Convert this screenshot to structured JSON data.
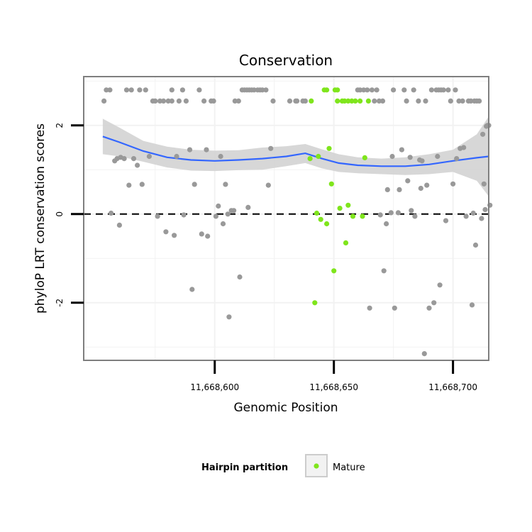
{
  "chart_data": {
    "type": "scatter",
    "title": "Conservation",
    "xlabel": "Genomic Position",
    "ylabel": "phyloP LRT conservation scores",
    "xlim": [
      11668545,
      11668715
    ],
    "ylim": [
      -3.3,
      3.1
    ],
    "x_ticks": [
      11668600,
      11668650,
      11668700
    ],
    "x_tick_labels": [
      "11,668,600",
      "11,668,650",
      "11,668,700"
    ],
    "y_ticks": [
      -2,
      0,
      2
    ],
    "y_tick_labels": [
      "-2",
      "0",
      "2"
    ],
    "reference_line": {
      "y": 0,
      "style": "dashed"
    },
    "grid": true,
    "legend": {
      "title": "Hairpin partition",
      "entries": [
        "Mature"
      ],
      "position": "bottom"
    },
    "colors": {
      "other": "#999999",
      "mature": "#7FE51C",
      "smooth": "#3366FF",
      "ribbon": "#D3D3D3",
      "panel_border": "#7F7F7F",
      "grid": "#F2F2F2"
    },
    "series": [
      {
        "name": "Mature",
        "points": [
          [
            11668640,
            1.25
          ],
          [
            11668640.5,
            2.55
          ],
          [
            11668642,
            -2.0
          ],
          [
            11668642.8,
            0.02
          ],
          [
            11668643.5,
            1.3
          ],
          [
            11668644.5,
            -0.12
          ],
          [
            11668646,
            2.8
          ],
          [
            11668647,
            2.8
          ],
          [
            11668647,
            -0.22
          ],
          [
            11668648,
            1.48
          ],
          [
            11668649,
            0.68
          ],
          [
            11668650,
            -1.28
          ],
          [
            11668650.5,
            2.8
          ],
          [
            11668651.5,
            2.8
          ],
          [
            11668651.5,
            2.55
          ],
          [
            11668652.5,
            0.13
          ],
          [
            11668653.5,
            2.55
          ],
          [
            11668654.5,
            2.55
          ],
          [
            11668655,
            -0.65
          ],
          [
            11668656,
            2.55
          ],
          [
            11668656,
            0.2
          ],
          [
            11668657.5,
            2.55
          ],
          [
            11668658,
            -0.05
          ],
          [
            11668659,
            2.55
          ],
          [
            11668661,
            2.55
          ],
          [
            11668662,
            -0.05
          ],
          [
            11668663,
            1.27
          ],
          [
            11668664.5,
            2.55
          ]
        ]
      },
      {
        "points": [
          [
            11668553.5,
            2.55
          ],
          [
            11668554.5,
            2.8
          ],
          [
            11668556,
            2.8
          ],
          [
            11668556.5,
            0.02
          ],
          [
            11668558,
            1.2
          ],
          [
            11668559,
            1.25
          ],
          [
            11668560,
            -0.25
          ],
          [
            11668560.5,
            1.28
          ],
          [
            11668562,
            1.25
          ],
          [
            11668563,
            2.8
          ],
          [
            11668564,
            0.65
          ],
          [
            11668565,
            2.8
          ],
          [
            11668566,
            1.25
          ],
          [
            11668567.5,
            1.1
          ],
          [
            11668568.5,
            2.8
          ],
          [
            11668569.5,
            0.67
          ],
          [
            11668571,
            2.8
          ],
          [
            11668572.5,
            1.3
          ],
          [
            11668574,
            2.55
          ],
          [
            11668575,
            2.55
          ],
          [
            11668576,
            -0.05
          ],
          [
            11668577,
            2.55
          ],
          [
            11668578.5,
            2.55
          ],
          [
            11668579.5,
            -0.4
          ],
          [
            11668580.5,
            2.55
          ],
          [
            11668582,
            2.55
          ],
          [
            11668582,
            2.8
          ],
          [
            11668583,
            -0.48
          ],
          [
            11668584,
            1.3
          ],
          [
            11668585,
            2.55
          ],
          [
            11668586.5,
            2.8
          ],
          [
            11668587,
            -0.02
          ],
          [
            11668588,
            2.55
          ],
          [
            11668589.5,
            1.45
          ],
          [
            11668590.5,
            -1.7
          ],
          [
            11668591.5,
            0.67
          ],
          [
            11668593.5,
            2.8
          ],
          [
            11668594.5,
            -0.45
          ],
          [
            11668595.5,
            2.55
          ],
          [
            11668596.5,
            1.45
          ],
          [
            11668597,
            -0.5
          ],
          [
            11668598.5,
            2.55
          ],
          [
            11668599.5,
            2.55
          ],
          [
            11668600.5,
            -0.05
          ],
          [
            11668601.5,
            0.18
          ],
          [
            11668602.5,
            1.3
          ],
          [
            11668603.5,
            -0.22
          ],
          [
            11668604.5,
            0.67
          ],
          [
            11668605.5,
            0.0
          ],
          [
            11668606,
            -2.32
          ],
          [
            11668607,
            0.08
          ],
          [
            11668608,
            0.08
          ],
          [
            11668608.5,
            2.55
          ],
          [
            11668610,
            2.55
          ],
          [
            11668610.5,
            -1.42
          ],
          [
            11668611.5,
            2.8
          ],
          [
            11668612.5,
            2.8
          ],
          [
            11668613.5,
            2.8
          ],
          [
            11668614,
            0.15
          ],
          [
            11668614.5,
            2.8
          ],
          [
            11668615.5,
            2.8
          ],
          [
            11668616.5,
            2.8
          ],
          [
            11668618,
            2.8
          ],
          [
            11668619,
            2.8
          ],
          [
            11668620,
            2.8
          ],
          [
            11668621.5,
            2.8
          ],
          [
            11668622.5,
            0.65
          ],
          [
            11668623.5,
            1.48
          ],
          [
            11668624.5,
            2.55
          ],
          [
            11668631.5,
            2.55
          ],
          [
            11668634,
            2.55
          ],
          [
            11668634.5,
            2.55
          ],
          [
            11668637,
            2.55
          ],
          [
            11668638,
            2.55
          ],
          [
            11668660,
            2.8
          ],
          [
            11668661,
            2.8
          ],
          [
            11668662.5,
            2.8
          ],
          [
            11668664,
            2.8
          ],
          [
            11668665,
            -2.12
          ],
          [
            11668666,
            2.8
          ],
          [
            11668667,
            2.55
          ],
          [
            11668668,
            2.8
          ],
          [
            11668669,
            2.55
          ],
          [
            11668669.5,
            -0.02
          ],
          [
            11668670.5,
            2.55
          ],
          [
            11668671,
            -1.28
          ],
          [
            11668672,
            -0.22
          ],
          [
            11668672.5,
            0.55
          ],
          [
            11668674,
            0.03
          ],
          [
            11668674.5,
            1.3
          ],
          [
            11668675,
            2.8
          ],
          [
            11668675.5,
            -2.12
          ],
          [
            11668677,
            0.03
          ],
          [
            11668677.5,
            0.55
          ],
          [
            11668678.5,
            1.45
          ],
          [
            11668679.5,
            2.8
          ],
          [
            11668680.5,
            2.55
          ],
          [
            11668681,
            0.75
          ],
          [
            11668682,
            1.28
          ],
          [
            11668682.5,
            0.08
          ],
          [
            11668683.5,
            2.8
          ],
          [
            11668684,
            -0.05
          ],
          [
            11668685.5,
            2.55
          ],
          [
            11668686,
            1.22
          ],
          [
            11668686.5,
            0.58
          ],
          [
            11668687,
            1.2
          ],
          [
            11668688,
            -3.15
          ],
          [
            11668688.5,
            2.55
          ],
          [
            11668689,
            0.65
          ],
          [
            11668690,
            -2.12
          ],
          [
            11668691,
            2.8
          ],
          [
            11668692,
            -2.0
          ],
          [
            11668693,
            2.8
          ],
          [
            11668693.5,
            1.3
          ],
          [
            11668694,
            2.8
          ],
          [
            11668694.5,
            -1.6
          ],
          [
            11668695,
            2.8
          ],
          [
            11668696,
            2.8
          ],
          [
            11668697,
            -0.15
          ],
          [
            11668698,
            2.8
          ],
          [
            11668699,
            2.55
          ],
          [
            11668700,
            0.68
          ],
          [
            11668701,
            2.8
          ],
          [
            11668701.5,
            1.25
          ],
          [
            11668702.5,
            2.55
          ],
          [
            11668703,
            1.48
          ],
          [
            11668704,
            2.55
          ],
          [
            11668704.5,
            1.5
          ],
          [
            11668705.5,
            -0.05
          ],
          [
            11668706.5,
            2.55
          ],
          [
            11668707.5,
            2.55
          ],
          [
            11668708,
            -2.05
          ],
          [
            11668708.5,
            0.02
          ],
          [
            11668709,
            2.55
          ],
          [
            11668709.5,
            -0.7
          ],
          [
            11668710,
            2.55
          ],
          [
            11668711,
            2.55
          ],
          [
            11668712,
            -0.1
          ],
          [
            11668712.5,
            1.8
          ],
          [
            11668713,
            0.68
          ],
          [
            11668713.5,
            0.1
          ],
          [
            11668714,
            1.98
          ],
          [
            11668714.5,
            2.0
          ],
          [
            11668715,
            2.0
          ],
          [
            11668715.5,
            0.2
          ]
        ]
      }
    ],
    "smooth": {
      "x": [
        11668553,
        11668560,
        11668570,
        11668580,
        11668590,
        11668600,
        11668610,
        11668620,
        11668630,
        11668638,
        11668645,
        11668652,
        11668660,
        11668670,
        11668680,
        11668690,
        11668700,
        11668710,
        11668715
      ],
      "y": [
        1.75,
        1.62,
        1.42,
        1.28,
        1.22,
        1.2,
        1.22,
        1.25,
        1.3,
        1.37,
        1.25,
        1.15,
        1.1,
        1.08,
        1.08,
        1.12,
        1.2,
        1.27,
        1.3
      ],
      "lower": [
        1.35,
        1.3,
        1.18,
        1.05,
        0.98,
        0.97,
        0.99,
        1.0,
        1.08,
        1.15,
        1.03,
        0.95,
        0.92,
        0.9,
        0.88,
        0.9,
        0.95,
        0.75,
        0.4
      ],
      "upper": [
        2.15,
        1.95,
        1.65,
        1.52,
        1.45,
        1.43,
        1.44,
        1.5,
        1.53,
        1.58,
        1.46,
        1.35,
        1.28,
        1.25,
        1.28,
        1.35,
        1.45,
        1.8,
        2.2
      ]
    }
  }
}
